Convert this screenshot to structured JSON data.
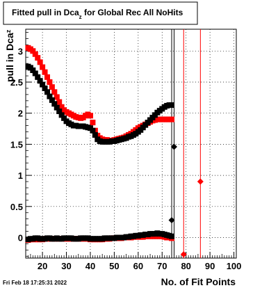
{
  "chart_data": {
    "type": "scatter",
    "title": {
      "prefix": "Fitted pull in Dca",
      "sub": "z",
      "suffix": " for Global Rec All NoHits"
    },
    "xlabel": "No. of Fit Points",
    "ylabel": {
      "main": "pull in Dca",
      "sub": "z"
    },
    "timestamp": "Fri Feb 18 17:25:31 2022",
    "xlim": [
      13,
      101
    ],
    "ylim": [
      -0.33,
      3.35
    ],
    "x_ticks": [
      20,
      30,
      40,
      50,
      60,
      70,
      80,
      90,
      100
    ],
    "y_ticks": [
      0,
      0.5,
      1,
      1.5,
      2,
      2.5,
      3
    ],
    "y_tick_labels": [
      "0",
      "0.5",
      "1",
      "1.5",
      "2",
      "2.5",
      "3"
    ],
    "grid": true,
    "colors": {
      "black_series": "#000000",
      "red_series": "#ff0000"
    },
    "series": [
      {
        "color": "#000000",
        "x": [
          14,
          15,
          16,
          17,
          18,
          19,
          20,
          21,
          22,
          23,
          24,
          25,
          26,
          27,
          28,
          29,
          30,
          31,
          32,
          33,
          34,
          35,
          36,
          37,
          38,
          39,
          40,
          41,
          42,
          43,
          44,
          45,
          46,
          47,
          48,
          49,
          50,
          51,
          52,
          53,
          54,
          55,
          56,
          57,
          58,
          59,
          60,
          61,
          62,
          63,
          64,
          65,
          66,
          67,
          68,
          69,
          70,
          71,
          72,
          73,
          74
        ],
        "y": [
          2.75,
          2.73,
          2.69,
          2.64,
          2.58,
          2.52,
          2.46,
          2.4,
          2.34,
          2.27,
          2.21,
          2.15,
          2.09,
          2.03,
          1.97,
          1.92,
          1.87,
          1.84,
          1.82,
          1.8,
          1.8,
          1.79,
          1.79,
          1.79,
          1.78,
          1.77,
          1.76,
          1.72,
          1.65,
          1.58,
          1.55,
          1.54,
          1.54,
          1.54,
          1.54,
          1.55,
          1.55,
          1.56,
          1.57,
          1.58,
          1.59,
          1.6,
          1.62,
          1.63,
          1.65,
          1.67,
          1.7,
          1.73,
          1.77,
          1.81,
          1.85,
          1.89,
          1.93,
          1.97,
          2.01,
          2.04,
          2.07,
          2.1,
          2.12,
          2.13,
          2.13
        ]
      },
      {
        "color": "#ff0000",
        "x": [
          14,
          15,
          16,
          17,
          18,
          19,
          20,
          21,
          22,
          23,
          24,
          25,
          26,
          27,
          28,
          29,
          30,
          31,
          32,
          33,
          34,
          35,
          36,
          37,
          38,
          39,
          40,
          41,
          42,
          43,
          44,
          45,
          46,
          47,
          48,
          49,
          50,
          51,
          52,
          53,
          54,
          55,
          56,
          57,
          58,
          59,
          60,
          61,
          62,
          63,
          64,
          65,
          66,
          67,
          68,
          69,
          70,
          71,
          72,
          73,
          74
        ],
        "y": [
          3.05,
          3.03,
          3.0,
          2.95,
          2.89,
          2.82,
          2.74,
          2.66,
          2.58,
          2.5,
          2.42,
          2.34,
          2.26,
          2.18,
          2.1,
          2.05,
          2.02,
          2.0,
          1.98,
          1.96,
          1.94,
          1.93,
          1.92,
          1.93,
          1.96,
          1.98,
          1.96,
          1.85,
          1.72,
          1.64,
          1.6,
          1.58,
          1.57,
          1.57,
          1.56,
          1.56,
          1.57,
          1.58,
          1.59,
          1.6,
          1.61,
          1.63,
          1.65,
          1.67,
          1.7,
          1.73,
          1.76,
          1.78,
          1.8,
          1.82,
          1.84,
          1.86,
          1.88,
          1.89,
          1.9,
          1.9,
          1.9,
          1.9,
          1.9,
          1.9,
          1.9
        ]
      },
      {
        "color": "#000000",
        "x": [
          14,
          15,
          16,
          17,
          18,
          19,
          20,
          21,
          22,
          23,
          24,
          25,
          26,
          27,
          28,
          29,
          30,
          31,
          32,
          33,
          34,
          35,
          36,
          37,
          38,
          39,
          40,
          41,
          42,
          43,
          44,
          45,
          46,
          47,
          48,
          49,
          50,
          51,
          52,
          53,
          54,
          55,
          56,
          57,
          58,
          59,
          60,
          61,
          62,
          63,
          64,
          65,
          66,
          67,
          68,
          69,
          70,
          71,
          72,
          73,
          74
        ],
        "y": [
          -0.03,
          -0.02,
          -0.02,
          -0.01,
          -0.01,
          -0.02,
          -0.02,
          -0.02,
          -0.01,
          -0.01,
          -0.02,
          -0.02,
          -0.01,
          -0.02,
          -0.02,
          -0.01,
          -0.01,
          -0.01,
          -0.01,
          -0.02,
          -0.02,
          -0.02,
          -0.01,
          -0.01,
          -0.01,
          -0.01,
          -0.02,
          -0.02,
          -0.02,
          -0.02,
          -0.02,
          -0.02,
          -0.01,
          -0.01,
          -0.01,
          -0.01,
          -0.01,
          0.0,
          0.0,
          0.0,
          0.0,
          0.01,
          0.01,
          0.02,
          0.02,
          0.03,
          0.03,
          0.04,
          0.04,
          0.05,
          0.05,
          0.06,
          0.06,
          0.06,
          0.07,
          0.06,
          0.06,
          0.05,
          0.04,
          0.03,
          0.02
        ]
      },
      {
        "color": "#ff0000",
        "x": [
          14,
          15,
          16,
          17,
          18,
          19,
          20,
          21,
          22,
          23,
          24,
          25,
          26,
          27,
          28,
          29,
          30,
          31,
          32,
          33,
          34,
          35,
          36,
          37,
          38,
          39,
          40,
          41,
          42,
          43,
          44,
          45,
          46,
          47,
          48,
          49,
          50,
          51,
          52,
          53,
          54,
          55,
          56,
          57,
          58,
          59,
          60,
          61,
          62,
          63,
          64,
          65,
          66,
          67,
          68,
          69,
          70,
          71,
          72,
          73,
          74
        ],
        "y": [
          -0.04,
          -0.03,
          -0.03,
          -0.03,
          -0.03,
          -0.03,
          -0.03,
          -0.02,
          -0.02,
          -0.02,
          -0.02,
          -0.02,
          -0.02,
          -0.02,
          -0.02,
          -0.02,
          -0.02,
          -0.02,
          -0.02,
          -0.02,
          -0.02,
          -0.02,
          -0.02,
          -0.02,
          -0.02,
          -0.02,
          -0.03,
          -0.03,
          -0.03,
          -0.03,
          -0.03,
          -0.03,
          -0.02,
          -0.02,
          -0.02,
          -0.01,
          -0.01,
          -0.01,
          -0.01,
          -0.01,
          0.0,
          0.0,
          0.0,
          0.0,
          0.01,
          0.01,
          0.01,
          0.01,
          0.01,
          0.02,
          0.02,
          0.02,
          0.02,
          0.02,
          0.02,
          0.02,
          0.02,
          0.01,
          0.0,
          0.0,
          -0.01
        ]
      }
    ],
    "isolated_points": [
      {
        "x": 75,
        "y": 1.46,
        "color": "#000000"
      },
      {
        "x": 74,
        "y": 0.28,
        "color": "#000000"
      },
      {
        "x": 86,
        "y": 0.9,
        "color": "#ff0000"
      },
      {
        "x": 79,
        "y": -0.27,
        "color": "#ff0000"
      }
    ],
    "vertical_lines": [
      {
        "x": 74,
        "color": "#000000"
      },
      {
        "x": 75,
        "color": "#000000"
      },
      {
        "x": 79,
        "color": "#ff0000"
      },
      {
        "x": 86,
        "color": "#ff0000"
      }
    ]
  }
}
